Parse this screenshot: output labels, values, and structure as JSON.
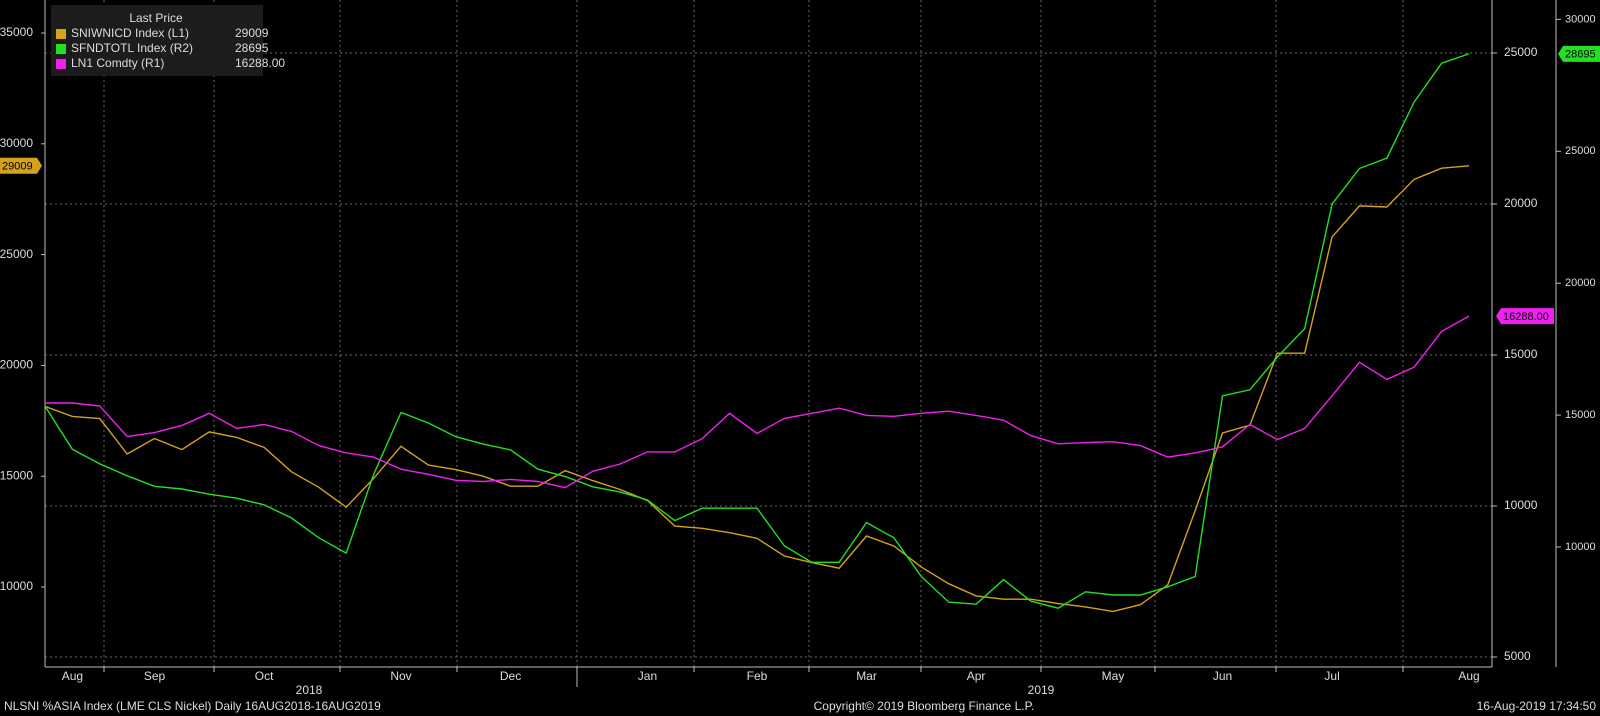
{
  "chart_data": {
    "type": "line",
    "legend_title": "Last Price",
    "categories": [
      null,
      "Aug",
      null,
      null,
      "Sep",
      null,
      null,
      null,
      "Oct",
      null,
      null,
      null,
      null,
      "Nov",
      null,
      null,
      null,
      "Dec",
      null,
      null,
      null,
      null,
      "Jan",
      null,
      null,
      null,
      "Feb",
      null,
      null,
      null,
      "Mar",
      null,
      null,
      null,
      "Apr",
      null,
      null,
      null,
      null,
      "May",
      null,
      null,
      null,
      "Jun",
      null,
      null,
      null,
      "Jul",
      null,
      null,
      null,
      null,
      "Aug"
    ],
    "years": [
      "2018",
      "2019"
    ],
    "series": [
      {
        "name": "SNIWNICD Index  (L1)",
        "last_price": "29009",
        "color": "#d4a21c",
        "axis": "y",
        "values": [
          18150,
          17700,
          17600,
          16000,
          16700,
          16200,
          17000,
          16750,
          16300,
          15200,
          14500,
          13600,
          14900,
          16350,
          15500,
          15300,
          15000,
          14550,
          14550,
          15250,
          14800,
          14400,
          13900,
          12750,
          12650,
          12450,
          12200,
          11400,
          11100,
          10850,
          12300,
          11850,
          10900,
          10150,
          9600,
          9450,
          9450,
          9250,
          9100,
          8900,
          9200,
          10100,
          13450,
          16950,
          17300,
          20550,
          20550,
          25800,
          27200,
          27150,
          28400,
          28900,
          29009
        ]
      },
      {
        "name": "SFNDTOTL Index  (R2)",
        "last_price": "28695",
        "color": "#22e022",
        "axis": "y3",
        "values": [
          15340,
          13700,
          13150,
          12700,
          12300,
          12200,
          12000,
          11850,
          11600,
          11100,
          10350,
          9770,
          12750,
          15100,
          14700,
          14180,
          13900,
          13680,
          12950,
          12670,
          12280,
          12090,
          11780,
          11000,
          11470,
          11470,
          11470,
          10040,
          9420,
          9420,
          10930,
          10350,
          8880,
          7910,
          7830,
          8760,
          7950,
          7680,
          8300,
          8180,
          8180,
          8490,
          8880,
          15730,
          15960,
          17200,
          18280,
          23000,
          24350,
          24740,
          26870,
          28340,
          28695
        ]
      },
      {
        "name": "LN1 Comdty  (R1)",
        "last_price": "16288.00",
        "color": "#f020f0",
        "axis": "y2",
        "values": [
          13410,
          13410,
          13310,
          12300,
          12430,
          12670,
          13070,
          12570,
          12700,
          12470,
          12000,
          11760,
          11620,
          11220,
          11050,
          10850,
          10810,
          10880,
          10810,
          10610,
          11150,
          11390,
          11790,
          11790,
          12230,
          13070,
          12400,
          12900,
          13070,
          13240,
          13000,
          12970,
          13070,
          13140,
          13000,
          12840,
          12330,
          12060,
          12100,
          12130,
          12000,
          11620,
          11760,
          11960,
          12700,
          12200,
          12570,
          13650,
          14760,
          14190,
          14600,
          15780,
          16288
        ]
      }
    ],
    "ylim": [
      6390,
      36490
    ],
    "yticks": [
      10000,
      15000,
      20000,
      25000,
      30000,
      35000
    ],
    "y2lim": [
      4669,
      26755
    ],
    "y2ticks": [
      5000,
      10000,
      15000,
      20000,
      25000
    ],
    "y3lim": [
      5451,
      30735
    ],
    "y3ticks": [
      10000,
      15000,
      20000,
      25000,
      30000
    ],
    "grid": true,
    "footer_left": "NLSNI %ASIA Index (LME CLS Nickel)  Daily 16AUG2018-16AUG2019",
    "footer_center": "Copyright© 2019 Bloomberg Finance L.P.",
    "footer_right": "16-Aug-2019 17:34:50"
  }
}
